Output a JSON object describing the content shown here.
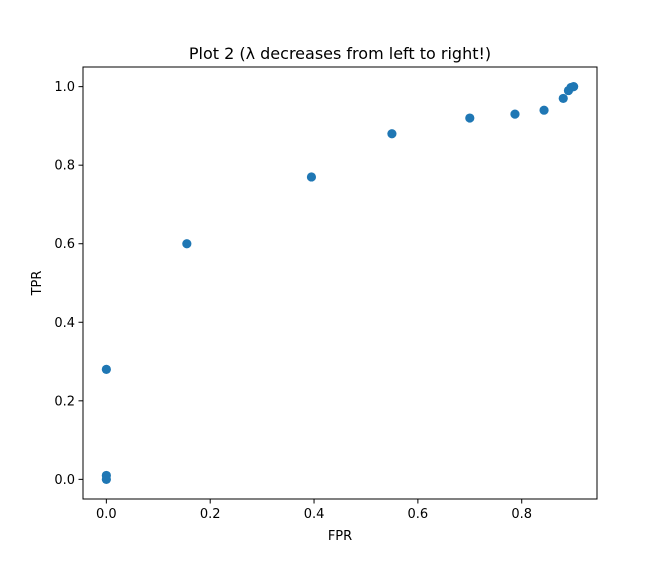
{
  "chart_data": {
    "type": "scatter",
    "title": "Plot 2 (λ decreases from left to right!)",
    "xlabel": "FPR",
    "ylabel": "TPR",
    "xlim": [
      -0.045,
      0.945
    ],
    "ylim": [
      -0.05,
      1.05
    ],
    "xticks": [
      0.0,
      0.2,
      0.4,
      0.6,
      0.8
    ],
    "xtick_labels": [
      "0.0",
      "0.2",
      "0.4",
      "0.6",
      "0.8"
    ],
    "yticks": [
      0.0,
      0.2,
      0.4,
      0.6,
      0.8,
      1.0
    ],
    "ytick_labels": [
      "0.0",
      "0.2",
      "0.4",
      "0.6",
      "0.8",
      "1.0"
    ],
    "grid": false,
    "legend": false,
    "marker_color": "#1f77b4",
    "points": [
      {
        "x": 0.0,
        "y": 0.0
      },
      {
        "x": 0.0,
        "y": 0.01
      },
      {
        "x": 0.0,
        "y": 0.28
      },
      {
        "x": 0.155,
        "y": 0.6
      },
      {
        "x": 0.395,
        "y": 0.77
      },
      {
        "x": 0.55,
        "y": 0.88
      },
      {
        "x": 0.7,
        "y": 0.92
      },
      {
        "x": 0.787,
        "y": 0.93
      },
      {
        "x": 0.843,
        "y": 0.94
      },
      {
        "x": 0.88,
        "y": 0.97
      },
      {
        "x": 0.89,
        "y": 0.99
      },
      {
        "x": 0.895,
        "y": 0.998
      },
      {
        "x": 0.9,
        "y": 1.0
      }
    ]
  }
}
